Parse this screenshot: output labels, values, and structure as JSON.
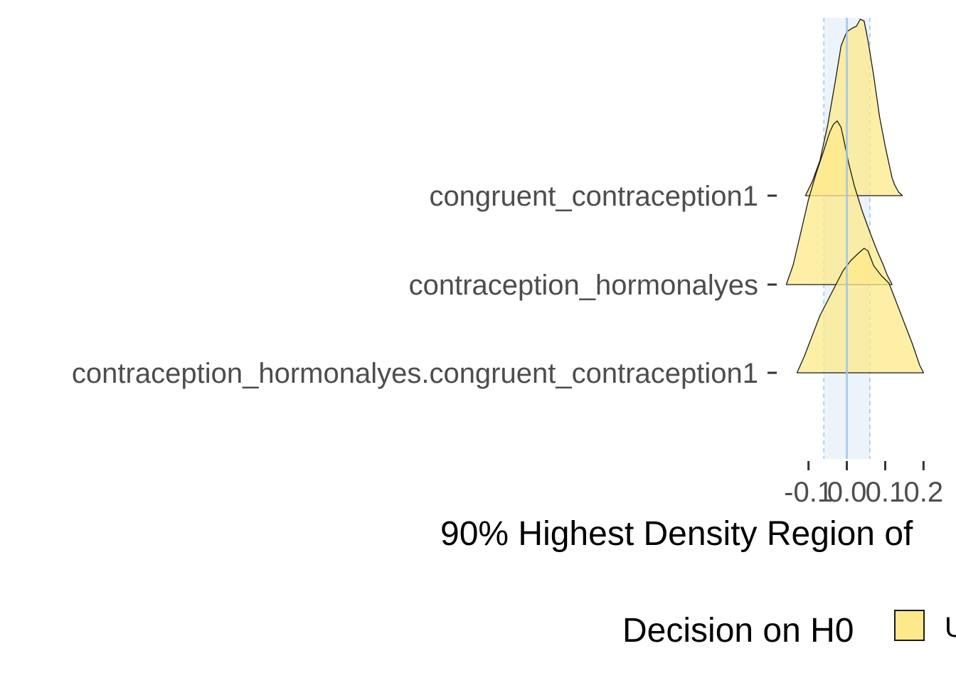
{
  "chart_data": {
    "type": "ridgeline-density",
    "title": "",
    "xlabel": "90% Highest Density Region of",
    "ylabel": "",
    "xlim": [
      -0.155,
      0.255
    ],
    "x_ticks": [
      -0.1,
      0.0,
      0.1,
      0.2
    ],
    "x_tick_labels": [
      "-0.1",
      "0.0",
      "0.1",
      "0.2"
    ],
    "rope": {
      "low": -0.06,
      "high": 0.06,
      "center": 0.0
    },
    "categories": [
      "congruent_contraception1",
      "contraception_hormonalyes",
      "contraception_hormonalyes.congruent_contraception1"
    ],
    "series": [
      {
        "name": "congruent_contraception1",
        "x": [
          -0.108,
          -0.09,
          -0.07,
          -0.05,
          -0.03,
          -0.015,
          0.0,
          0.015,
          0.025,
          0.035,
          0.045,
          0.055,
          0.07,
          0.085,
          0.1,
          0.112,
          0.118,
          0.125,
          0.135,
          0.145
        ],
        "density": [
          0.0,
          0.08,
          0.2,
          0.4,
          0.65,
          0.85,
          0.93,
          0.95,
          0.96,
          1.0,
          0.99,
          0.88,
          0.68,
          0.45,
          0.28,
          0.16,
          0.1,
          0.06,
          0.02,
          0.0
        ]
      },
      {
        "name": "contraception_hormonalyes",
        "x": [
          -0.158,
          -0.14,
          -0.12,
          -0.1,
          -0.08,
          -0.06,
          -0.045,
          -0.035,
          -0.025,
          -0.015,
          -0.005,
          0.005,
          0.02,
          0.04,
          0.06,
          0.08,
          0.095,
          0.105,
          0.118
        ],
        "density": [
          0.0,
          0.12,
          0.32,
          0.52,
          0.68,
          0.82,
          0.93,
          0.98,
          1.0,
          0.96,
          0.85,
          0.74,
          0.6,
          0.45,
          0.32,
          0.2,
          0.12,
          0.06,
          0.0
        ]
      },
      {
        "name": "contraception_hormonalyes.congruent_contraception1",
        "x": [
          -0.13,
          -0.11,
          -0.09,
          -0.07,
          -0.05,
          -0.03,
          -0.01,
          0.01,
          0.03,
          0.045,
          0.055,
          0.07,
          0.09,
          0.11,
          0.13,
          0.15,
          0.17,
          0.19,
          0.2
        ],
        "density": [
          0.0,
          0.14,
          0.3,
          0.46,
          0.58,
          0.7,
          0.82,
          0.9,
          0.96,
          1.0,
          0.98,
          0.86,
          0.78,
          0.72,
          0.56,
          0.4,
          0.24,
          0.06,
          0.0
        ]
      }
    ],
    "legend": {
      "title": "Decision on H0",
      "entries": [
        {
          "label": "U",
          "color": "#fde98a"
        }
      ]
    },
    "colors": {
      "fill": "#fde98a",
      "outline": "#1a1a1a",
      "rope_fill": "#dce9f8",
      "rope_line": "#9ec6ec",
      "axis": "#333333"
    }
  }
}
